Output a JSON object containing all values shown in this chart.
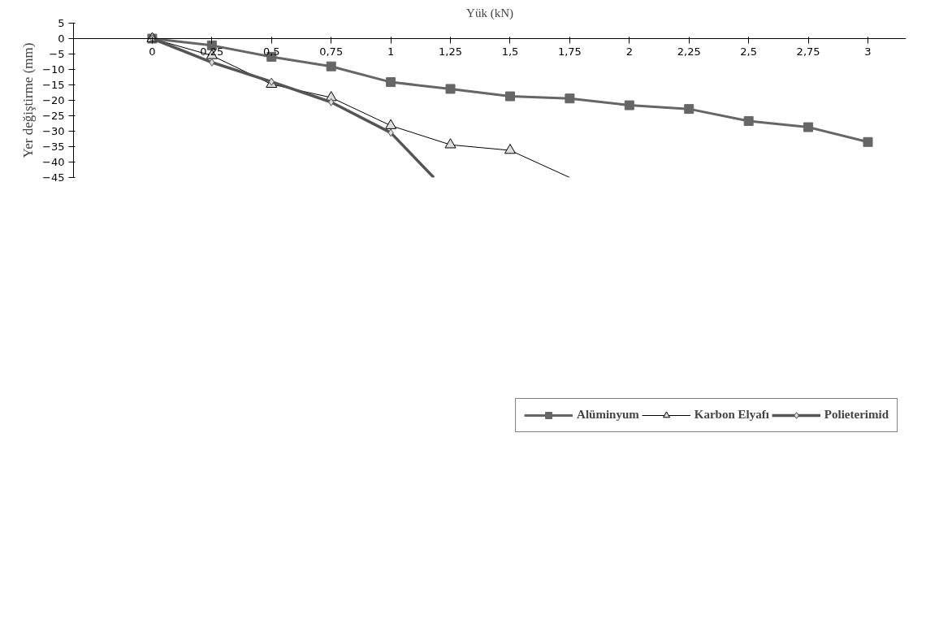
{
  "chart_data": {
    "type": "line",
    "xlabel": "Yük (kN)",
    "ylabel": "Yer değiştirme (mm)",
    "x": [
      0,
      0.25,
      0.5,
      0.75,
      1,
      1.25,
      1.5,
      1.75,
      2,
      2.25,
      2.5,
      2.75,
      3
    ],
    "xlim": [
      -0.33,
      3.16
    ],
    "xticks": [
      0,
      {
        "value": 0.25,
        "label": "0,25"
      },
      {
        "value": 0.5,
        "label": "0,5"
      },
      {
        "value": 0.75,
        "label": "0,75"
      },
      1,
      {
        "value": 1.25,
        "label": "1,25"
      },
      {
        "value": 1.5,
        "label": "1,5"
      },
      {
        "value": 1.75,
        "label": "1,75"
      },
      2,
      {
        "value": 2.25,
        "label": "2,25"
      },
      {
        "value": 2.5,
        "label": "2,5"
      },
      {
        "value": 2.75,
        "label": "2,75"
      },
      3
    ],
    "ylim": [
      -45,
      5
    ],
    "yticks": [
      5,
      0,
      -5,
      -10,
      -15,
      -20,
      -25,
      -30,
      -35,
      -40,
      -45
    ],
    "series": [
      {
        "name": "Alüminyum",
        "color": "#666666",
        "marker": "square",
        "line_style": "solid",
        "values": [
          0,
          -2.2,
          -5.9,
          -9.0,
          -14.1,
          -16.3,
          -18.7,
          -19.4,
          -21.6,
          -22.8,
          -26.7,
          -28.7,
          -33.5
        ]
      },
      {
        "name": "Karbon Elyafı",
        "color": "#000000",
        "marker": "triangle",
        "line_style": "solid",
        "x": [
          0,
          0.25,
          0.5,
          0.75,
          1,
          1.25,
          1.5,
          1.75
        ],
        "values": [
          0,
          -5.5,
          -14.8,
          -19.1,
          -28.2,
          -34.4,
          -36.2,
          -45
        ]
      },
      {
        "name": "Polieterimid",
        "color": "#555555",
        "marker": "diamond",
        "line_style": "solid",
        "x": [
          0,
          0.25,
          0.5,
          0.75,
          1,
          1.18
        ],
        "values": [
          0,
          -7.7,
          -14.0,
          -20.6,
          -30.5,
          -45
        ]
      }
    ],
    "legend": "bottom",
    "grid": false
  }
}
